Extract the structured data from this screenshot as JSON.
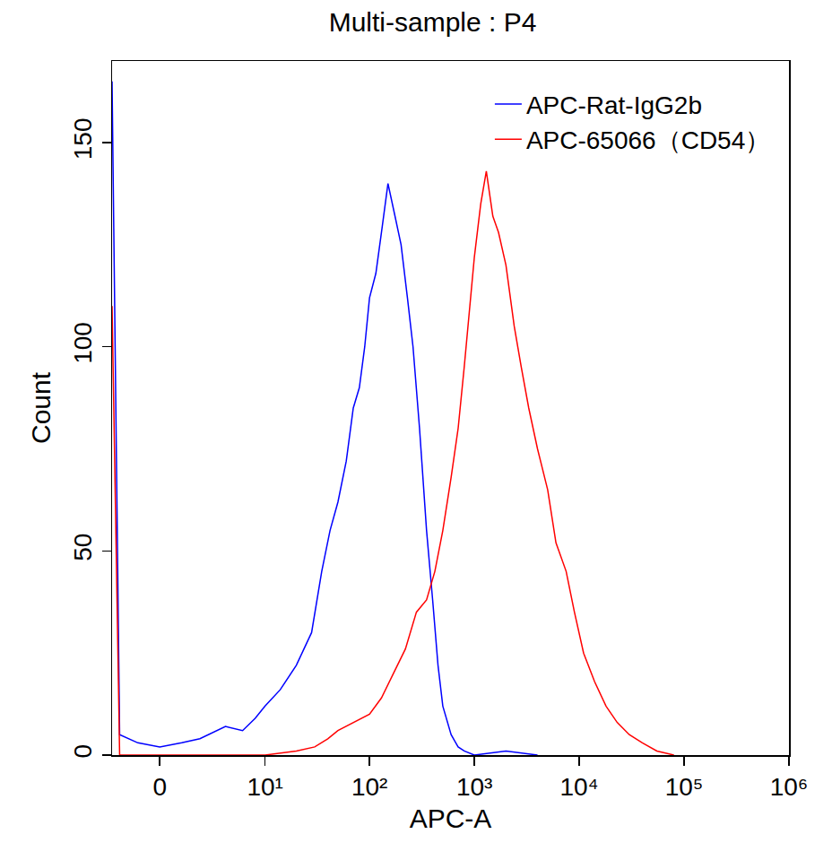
{
  "chart_data": {
    "type": "line",
    "title": "Multi-sample : P4",
    "x_label": "APC-A",
    "y_label": "Count",
    "xlim": [
      -2.5,
      1000000
    ],
    "ylim": [
      0,
      170
    ],
    "xticks": [
      0,
      {
        "value": 10,
        "label": "10¹"
      },
      {
        "value": 100,
        "label": "10²"
      },
      {
        "value": 1000,
        "label": "10³"
      },
      {
        "value": 10000,
        "label": "10⁴"
      },
      {
        "value": 100000,
        "label": "10⁵"
      },
      {
        "value": 1000000,
        "label": "10⁶"
      }
    ],
    "yticks": [
      0,
      50,
      100,
      150
    ],
    "grid": false,
    "legend": "upper right",
    "series": [
      {
        "name": "APC-Rat-IgG2b",
        "color": "#0000ff",
        "x": [
          -2.5,
          -2,
          -1,
          0,
          1,
          2,
          4,
          6,
          8,
          10,
          14,
          20,
          28,
          35,
          42,
          50,
          60,
          70,
          80,
          90,
          100,
          115,
          130,
          150,
          175,
          200,
          230,
          260,
          300,
          350,
          400,
          450,
          500,
          600,
          700,
          800,
          1000,
          2000,
          4000
        ],
        "values": [
          165,
          5,
          3,
          2,
          3,
          4,
          7,
          6,
          9,
          12,
          16,
          22,
          30,
          45,
          55,
          62,
          72,
          85,
          90,
          100,
          112,
          118,
          128,
          140,
          132,
          125,
          112,
          100,
          80,
          55,
          38,
          22,
          12,
          5,
          2,
          1,
          0,
          1,
          0
        ]
      },
      {
        "name": "APC-65066（CD54）",
        "color": "#ff0000",
        "x": [
          -2.5,
          -2,
          10,
          20,
          30,
          40,
          50,
          70,
          100,
          130,
          170,
          220,
          280,
          350,
          420,
          500,
          600,
          700,
          800,
          900,
          1000,
          1150,
          1300,
          1500,
          1700,
          2000,
          2400,
          2800,
          3300,
          4000,
          5000,
          6000,
          7500,
          9000,
          11000,
          14000,
          18000,
          23000,
          30000,
          40000,
          55000,
          80000
        ],
        "values": [
          110,
          0,
          0,
          1,
          2,
          4,
          6,
          8,
          10,
          14,
          20,
          26,
          35,
          38,
          45,
          55,
          68,
          80,
          95,
          110,
          122,
          135,
          143,
          132,
          128,
          120,
          105,
          95,
          85,
          75,
          65,
          52,
          45,
          35,
          25,
          18,
          12,
          8,
          5,
          3,
          1,
          0
        ]
      }
    ]
  }
}
